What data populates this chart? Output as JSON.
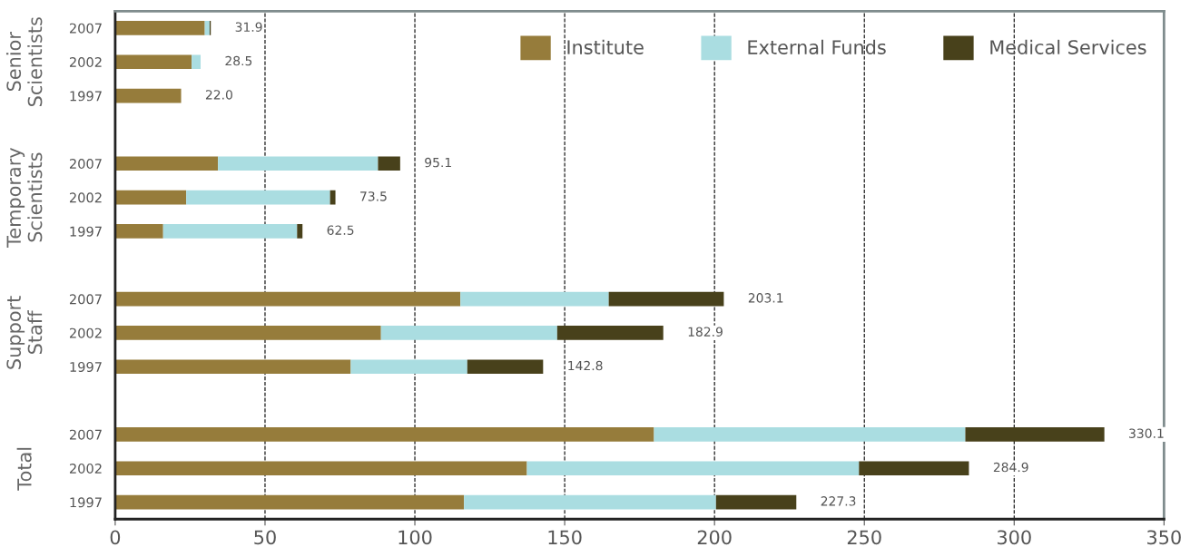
{
  "chart_data": {
    "type": "bar",
    "orientation": "horizontal",
    "stacked": true,
    "categories": [
      "2007",
      "2002",
      "1997",
      null,
      "2007",
      "2002",
      "1997",
      null,
      "2007",
      "2002",
      "1997",
      null,
      "2007",
      "2002",
      "1997"
    ],
    "series": [
      {
        "name": "Institute",
        "color": "#967c3b",
        "values": [
          29.9,
          25.5,
          22.0,
          null,
          34.3,
          23.7,
          16.0,
          null,
          115.2,
          88.7,
          78.6,
          null,
          179.8,
          137.4,
          116.4
        ]
      },
      {
        "name": "External Funds",
        "color": "#aadde1",
        "values": [
          1.6,
          3.0,
          null,
          null,
          53.4,
          48.0,
          44.7,
          null,
          49.5,
          58.8,
          38.9,
          null,
          103.9,
          110.8,
          84.1
        ]
      },
      {
        "name": "Medical Services",
        "color": "#48411b",
        "values": [
          0.4,
          null,
          null,
          null,
          7.4,
          1.8,
          1.8,
          null,
          38.4,
          35.4,
          25.3,
          null,
          46.4,
          36.7,
          26.8
        ]
      }
    ],
    "totals": [
      "31.9",
      "28.5",
      "22.0",
      null,
      "95.1",
      "73.5",
      "62.5",
      null,
      "203.1",
      "182.9",
      "142.8",
      null,
      "330.1",
      "284.9",
      "227.3"
    ],
    "annotations": [
      "Senior\nScientists",
      "Temporary\nScientists",
      "Support\nStaff",
      "Total"
    ],
    "xlim": [
      0,
      350
    ],
    "xticks": [
      0,
      50,
      100,
      150,
      200,
      250,
      300,
      350
    ],
    "grid": "x",
    "line_style": "dashed",
    "legend": "top right"
  }
}
